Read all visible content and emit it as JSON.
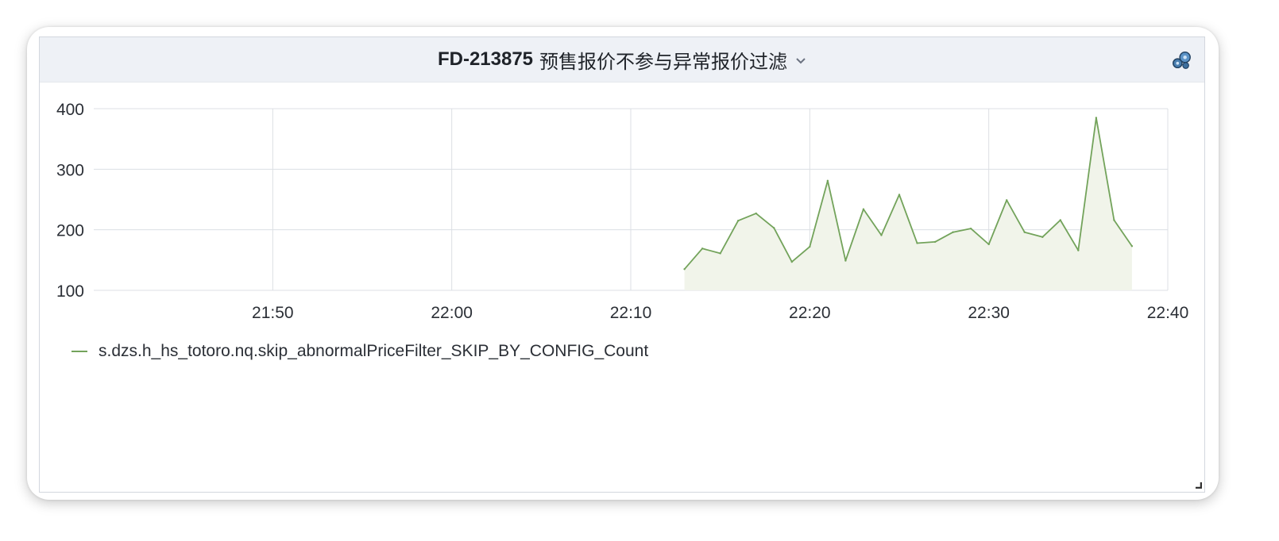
{
  "panel": {
    "title_code": "FD-213875",
    "title_text": "预售报价不参与异常报价过滤",
    "title_dropdown_icon": "chevron-down-icon",
    "menu_icon": "gears-icon",
    "resize_icon": "resize-corner-icon"
  },
  "colors": {
    "series": "#73a35b",
    "series_fill": "#f1f4ea",
    "grid": "#dcdfe4",
    "axis_text": "#2b2f36",
    "header_bg": "#eef1f6"
  },
  "chart_data": {
    "type": "area",
    "title": "FD-213875 预售报价不参与异常报价过滤",
    "xlabel": "",
    "ylabel": "",
    "x_range": [
      "21:40",
      "22:40"
    ],
    "xticks": [
      "21:50",
      "22:00",
      "22:10",
      "22:20",
      "22:30",
      "22:40"
    ],
    "ylim": [
      100,
      400
    ],
    "yticks": [
      100,
      200,
      300,
      400
    ],
    "grid": true,
    "legend_position": "bottom-left",
    "series": [
      {
        "name": "s.dzs.h_hs_totoro.nq.skip_abnormalPriceFilter_SKIP_BY_CONFIG_Count",
        "points": [
          [
            "22:13",
            135
          ],
          [
            "22:14",
            169
          ],
          [
            "22:15",
            161
          ],
          [
            "22:16",
            215
          ],
          [
            "22:17",
            227
          ],
          [
            "22:18",
            203
          ],
          [
            "22:19",
            147
          ],
          [
            "22:20",
            172
          ],
          [
            "22:21",
            281
          ],
          [
            "22:22",
            149
          ],
          [
            "22:23",
            234
          ],
          [
            "22:24",
            191
          ],
          [
            "22:25",
            258
          ],
          [
            "22:26",
            178
          ],
          [
            "22:27",
            180
          ],
          [
            "22:28",
            196
          ],
          [
            "22:29",
            202
          ],
          [
            "22:30",
            176
          ],
          [
            "22:31",
            249
          ],
          [
            "22:32",
            196
          ],
          [
            "22:33",
            188
          ],
          [
            "22:34",
            216
          ],
          [
            "22:35",
            166
          ],
          [
            "22:36",
            385
          ],
          [
            "22:37",
            216
          ],
          [
            "22:38",
            173
          ]
        ]
      }
    ]
  }
}
